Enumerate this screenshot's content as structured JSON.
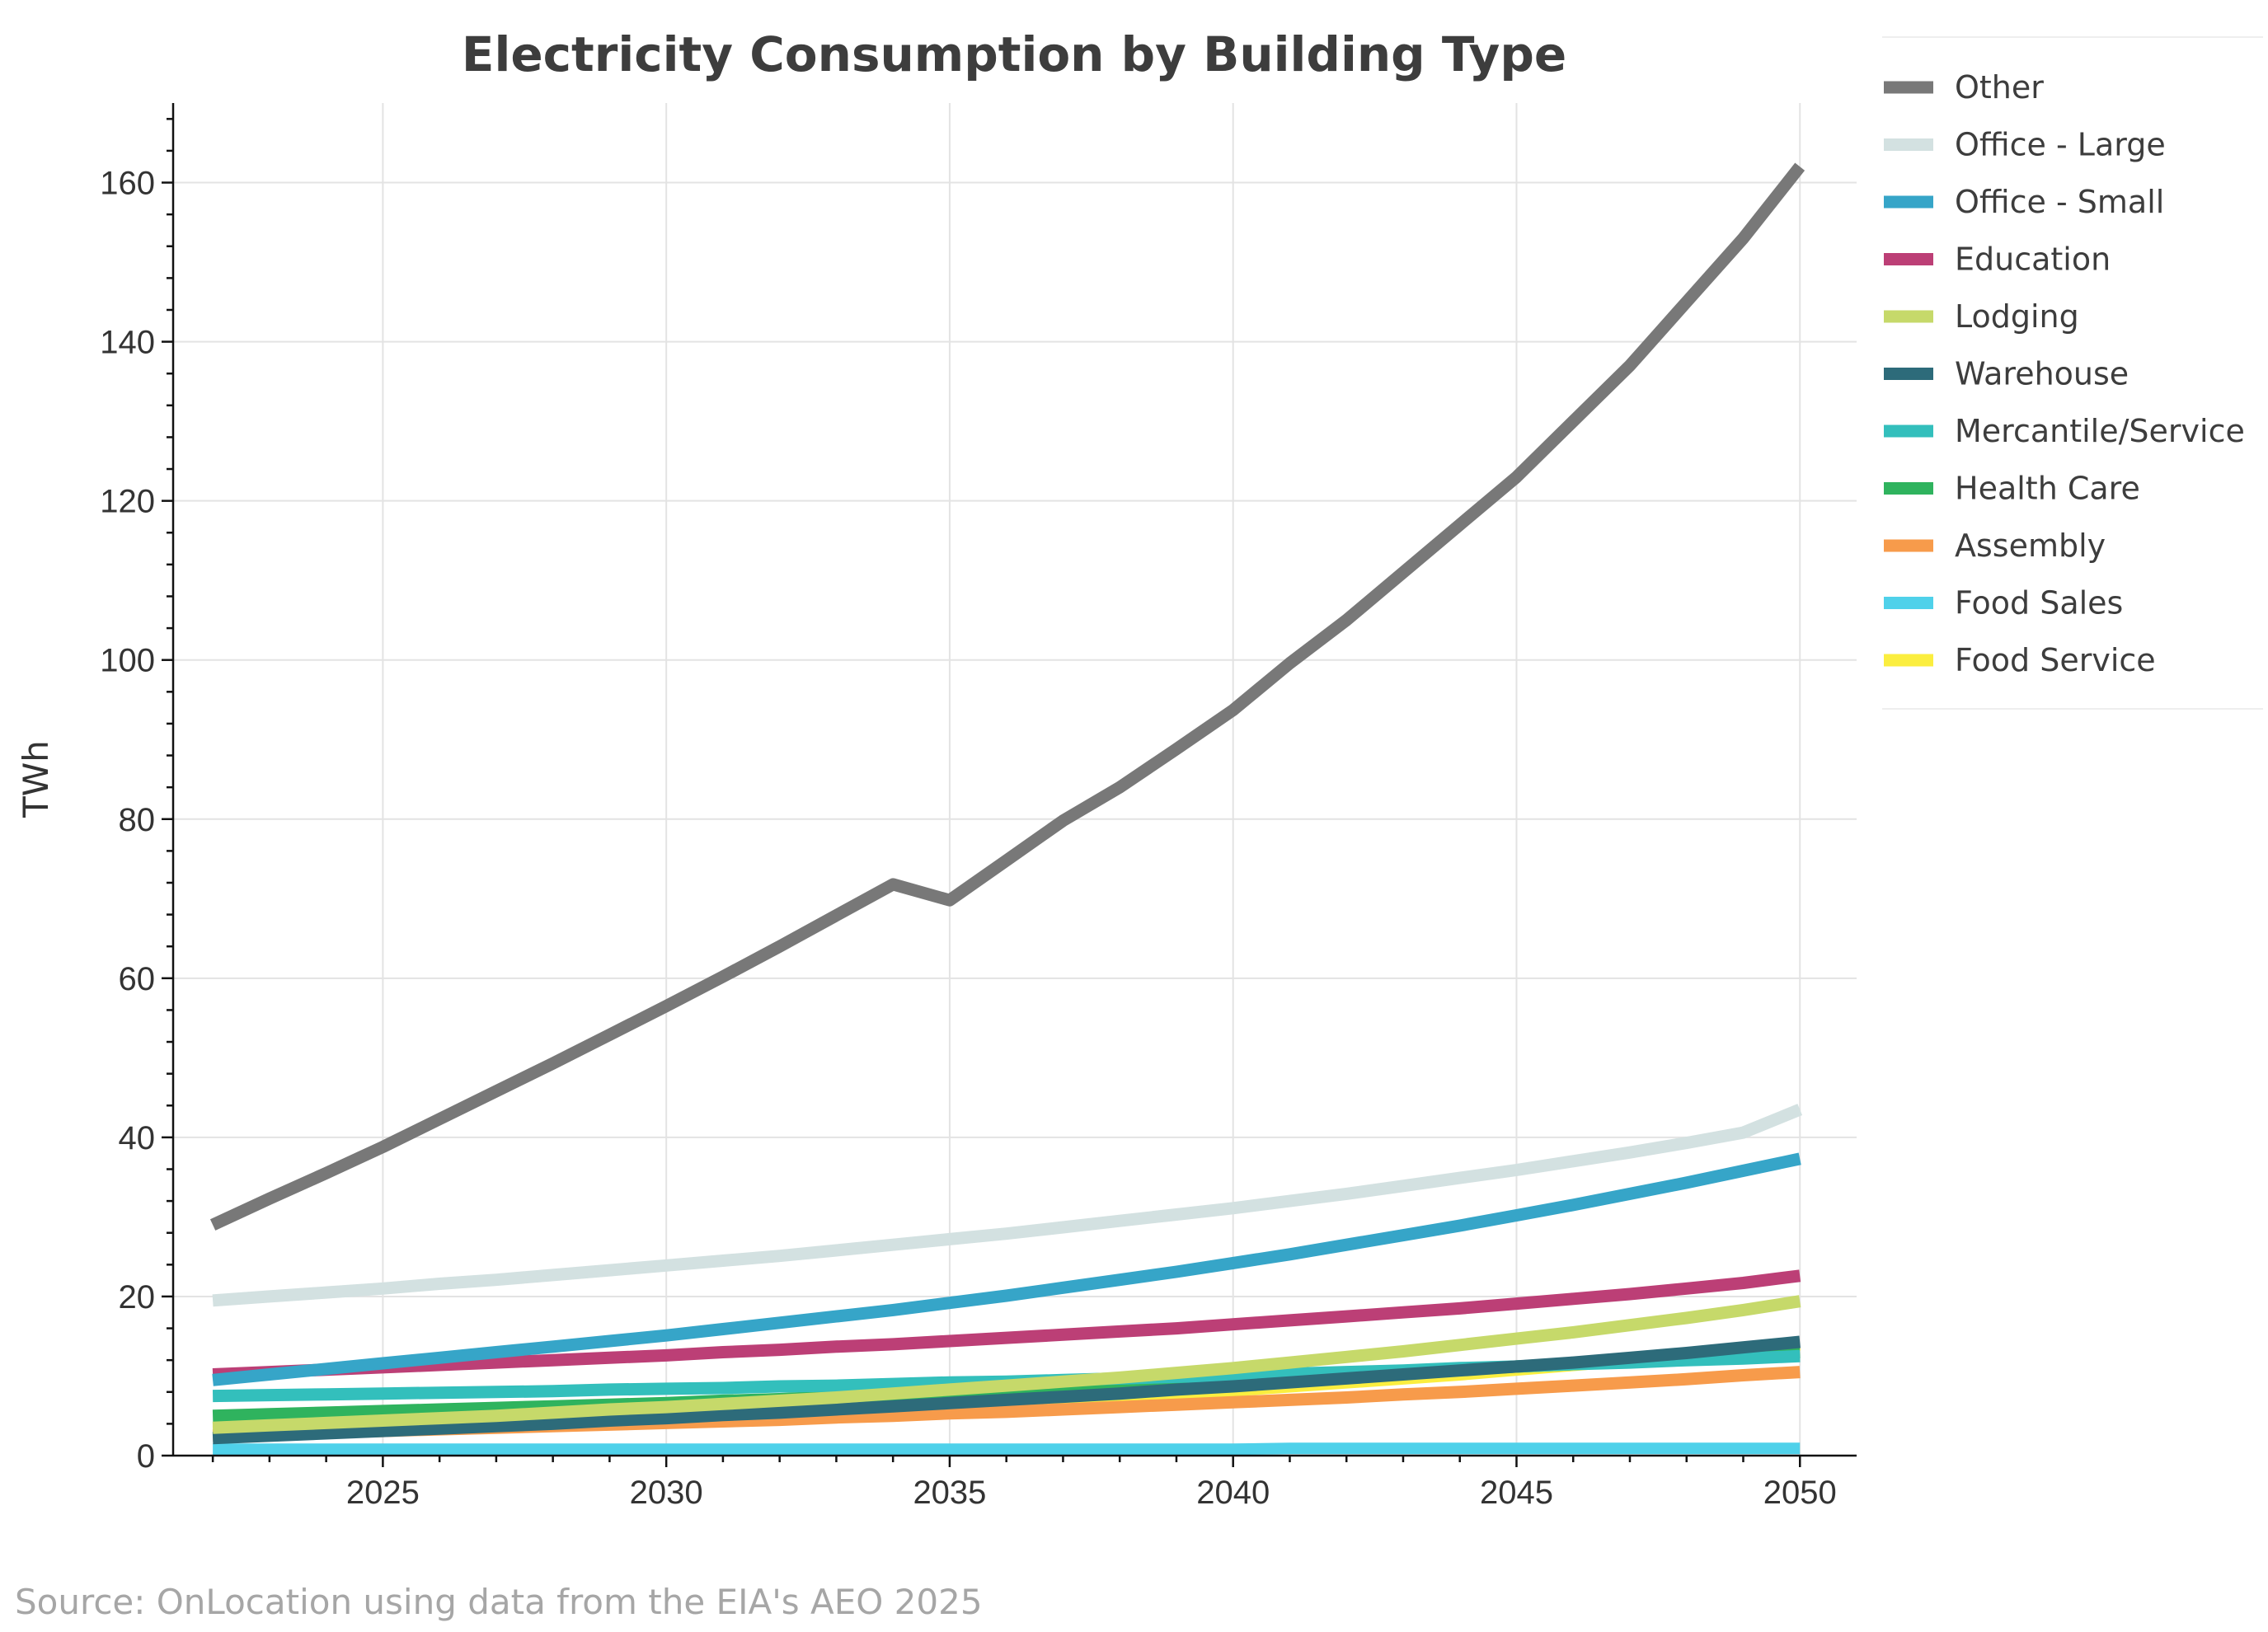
{
  "chart_data": {
    "type": "line",
    "title": "Electricity Consumption by Building Type",
    "xlabel": "",
    "ylabel": "TWh",
    "xlim": [
      2021.3,
      2051
    ],
    "ylim": [
      0,
      170
    ],
    "x_ticks": [
      2025,
      2030,
      2035,
      2040,
      2045,
      2050
    ],
    "y_ticks": [
      0,
      20,
      40,
      60,
      80,
      100,
      120,
      140,
      160
    ],
    "grid": true,
    "legend_position": "top-right, outside plot",
    "x": [
      2022,
      2023,
      2024,
      2025,
      2026,
      2027,
      2028,
      2029,
      2030,
      2031,
      2032,
      2033,
      2034,
      2035,
      2036,
      2037,
      2038,
      2039,
      2040,
      2041,
      2042,
      2043,
      2044,
      2045,
      2046,
      2047,
      2048,
      2049,
      2050
    ],
    "series": [
      {
        "name": "Food Service",
        "color": "#fbee3f",
        "values": [
          3.0,
          3.2,
          3.4,
          3.6,
          3.8,
          4.0,
          4.2,
          4.5,
          4.7,
          5.0,
          5.3,
          5.6,
          5.9,
          6.2,
          6.6,
          7.0,
          7.4,
          7.8,
          8.2,
          8.7,
          9.2,
          9.7,
          10.2,
          10.8,
          11.4,
          12.0,
          12.7,
          13.4,
          14.0
        ]
      },
      {
        "name": "Food Sales",
        "color": "#4fd1ea",
        "values": [
          0.8,
          0.8,
          0.8,
          0.8,
          0.8,
          0.8,
          0.8,
          0.8,
          0.8,
          0.8,
          0.8,
          0.8,
          0.8,
          0.8,
          0.8,
          0.8,
          0.8,
          0.8,
          0.8,
          0.9,
          0.9,
          0.9,
          0.9,
          0.9,
          0.9,
          0.9,
          0.9,
          0.9,
          0.9
        ]
      },
      {
        "name": "Assembly",
        "color": "#f79b4b",
        "values": [
          2.5,
          2.7,
          2.9,
          3.1,
          3.3,
          3.5,
          3.7,
          3.9,
          4.1,
          4.3,
          4.5,
          4.8,
          5.0,
          5.3,
          5.5,
          5.8,
          6.1,
          6.4,
          6.7,
          7.0,
          7.3,
          7.7,
          8.0,
          8.4,
          8.8,
          9.2,
          9.6,
          10.1,
          10.5
        ]
      },
      {
        "name": "Health Care",
        "color": "#2fb35e",
        "values": [
          5.0,
          5.2,
          5.4,
          5.6,
          5.8,
          6.0,
          6.2,
          6.4,
          6.6,
          6.9,
          7.1,
          7.4,
          7.6,
          7.9,
          8.2,
          8.5,
          8.8,
          9.1,
          9.4,
          9.7,
          10.1,
          10.4,
          10.8,
          11.2,
          11.5,
          11.9,
          12.3,
          12.7,
          13.0
        ]
      },
      {
        "name": "Mercantile/Service",
        "color": "#33bfbc",
        "values": [
          7.5,
          7.6,
          7.7,
          7.8,
          7.9,
          8.0,
          8.1,
          8.3,
          8.4,
          8.5,
          8.7,
          8.8,
          9.0,
          9.2,
          9.3,
          9.5,
          9.7,
          9.9,
          10.1,
          10.3,
          10.5,
          10.7,
          11.0,
          11.2,
          11.5,
          11.7,
          12.0,
          12.2,
          12.5
        ]
      },
      {
        "name": "Warehouse",
        "color": "#2d6b7a",
        "values": [
          2.2,
          2.5,
          2.8,
          3.1,
          3.4,
          3.7,
          4.0,
          4.4,
          4.7,
          5.1,
          5.4,
          5.8,
          6.2,
          6.6,
          7.0,
          7.4,
          7.8,
          8.3,
          8.7,
          9.2,
          9.7,
          10.2,
          10.7,
          11.2,
          11.7,
          12.3,
          12.9,
          13.6,
          14.3
        ]
      },
      {
        "name": "Lodging",
        "color": "#c6d96a",
        "values": [
          3.5,
          3.8,
          4.1,
          4.4,
          4.7,
          5.0,
          5.4,
          5.8,
          6.1,
          6.5,
          6.9,
          7.3,
          7.8,
          8.3,
          8.8,
          9.3,
          9.8,
          10.4,
          11.0,
          11.7,
          12.4,
          13.1,
          13.9,
          14.7,
          15.5,
          16.4,
          17.3,
          18.3,
          19.4
        ]
      },
      {
        "name": "Education",
        "color": "#bc3f76",
        "values": [
          10.2,
          10.5,
          10.8,
          11.1,
          11.4,
          11.7,
          12.0,
          12.3,
          12.6,
          13.0,
          13.3,
          13.7,
          14.0,
          14.4,
          14.8,
          15.2,
          15.6,
          16.0,
          16.5,
          17.0,
          17.5,
          18.0,
          18.5,
          19.1,
          19.7,
          20.3,
          21.0,
          21.7,
          22.6
        ]
      },
      {
        "name": "Office - Small",
        "color": "#36a5c8",
        "values": [
          9.5,
          10.2,
          10.9,
          11.6,
          12.3,
          13.0,
          13.7,
          14.4,
          15.1,
          15.9,
          16.7,
          17.5,
          18.3,
          19.2,
          20.1,
          21.1,
          22.1,
          23.1,
          24.2,
          25.3,
          26.5,
          27.7,
          28.9,
          30.2,
          31.5,
          32.9,
          34.3,
          35.8,
          37.3
        ]
      },
      {
        "name": "Office - Large",
        "color": "#d3e1e1",
        "values": [
          19.5,
          20.0,
          20.5,
          21.0,
          21.6,
          22.1,
          22.7,
          23.3,
          23.9,
          24.5,
          25.1,
          25.8,
          26.5,
          27.2,
          27.9,
          28.7,
          29.5,
          30.3,
          31.1,
          32.0,
          32.9,
          33.9,
          34.9,
          35.9,
          37.0,
          38.1,
          39.3,
          40.6,
          43.5
        ]
      },
      {
        "name": "Other",
        "color": "#787878",
        "values": [
          29.0,
          32.3,
          35.5,
          38.8,
          42.3,
          45.8,
          49.3,
          52.9,
          56.5,
          60.2,
          64.0,
          67.9,
          71.8,
          69.8,
          74.8,
          79.8,
          84.0,
          88.8,
          93.7,
          99.6,
          105.0,
          111.0,
          117.0,
          123.0,
          130.0,
          137.0,
          145.0,
          153.0,
          162.0
        ]
      }
    ],
    "legend_order": [
      "Other",
      "Office - Large",
      "Office - Small",
      "Education",
      "Lodging",
      "Warehouse",
      "Mercantile/Service",
      "Health Care",
      "Assembly",
      "Food Sales",
      "Food Service"
    ]
  },
  "source_text": "Source: OnLocation using data from the EIA's AEO 2025"
}
